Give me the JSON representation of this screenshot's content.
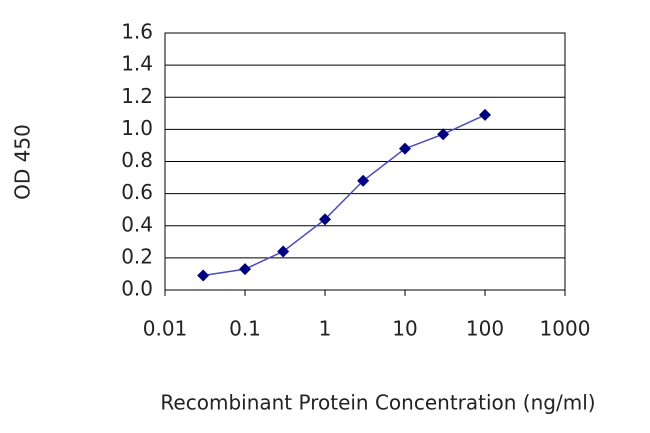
{
  "chart_data": {
    "type": "line",
    "x_label": "Recombinant Protein Concentration (ng/ml)",
    "y_label": "OD 450",
    "x": [
      0.03,
      0.1,
      0.3,
      1,
      3,
      10,
      30,
      100
    ],
    "series": [
      {
        "color": "#000080",
        "values": [
          0.09,
          0.13,
          0.24,
          0.44,
          0.68,
          0.88,
          0.97,
          1.09
        ]
      }
    ],
    "xlim": [
      0.01,
      1000
    ],
    "xscale": "log",
    "xticks": [
      0.01,
      0.1,
      1,
      10,
      100,
      1000
    ],
    "ylim": [
      0,
      1.6
    ],
    "yticks": [
      {
        "value": 0,
        "label": "0.0"
      },
      0.2,
      0.4,
      0.6,
      0.8,
      {
        "value": 1,
        "label": "1.0"
      },
      1.2,
      1.4,
      1.6
    ],
    "grid": true
  }
}
